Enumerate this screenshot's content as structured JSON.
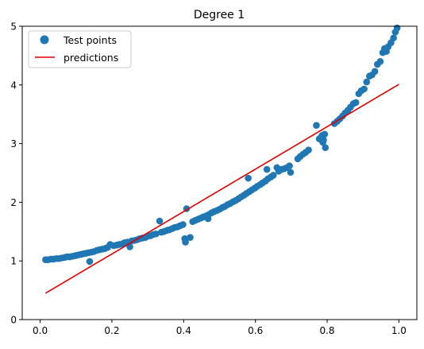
{
  "chart_data": {
    "type": "scatter",
    "title": "Degree 1",
    "xlabel": "",
    "ylabel": "",
    "xlim": [
      -0.05,
      1.05
    ],
    "ylim": [
      0,
      5
    ],
    "x_ticks": [
      0.0,
      0.2,
      0.4,
      0.6,
      0.8,
      1.0
    ],
    "x_tick_labels": [
      "0.0",
      "0.2",
      "0.4",
      "0.6",
      "0.8",
      "1.0"
    ],
    "y_ticks": [
      0,
      1,
      2,
      3,
      4,
      5
    ],
    "y_tick_labels": [
      "0",
      "1",
      "2",
      "3",
      "4",
      "5"
    ],
    "grid": false,
    "legend": {
      "placement": "top-left",
      "entries": [
        {
          "label": "Test points",
          "type": "marker",
          "color": "#1f77b4"
        },
        {
          "label": "predictions",
          "type": "line",
          "color": "#e00000"
        }
      ]
    },
    "series": [
      {
        "name": "Test points",
        "type": "scatter",
        "color": "#1f77b4",
        "points": [
          [
            0.015,
            1.02
          ],
          [
            0.022,
            1.02
          ],
          [
            0.03,
            1.03
          ],
          [
            0.037,
            1.03
          ],
          [
            0.045,
            1.04
          ],
          [
            0.052,
            1.04
          ],
          [
            0.06,
            1.05
          ],
          [
            0.068,
            1.06
          ],
          [
            0.075,
            1.07
          ],
          [
            0.083,
            1.07
          ],
          [
            0.09,
            1.08
          ],
          [
            0.098,
            1.09
          ],
          [
            0.105,
            1.1
          ],
          [
            0.113,
            1.11
          ],
          [
            0.12,
            1.12
          ],
          [
            0.128,
            1.13
          ],
          [
            0.135,
            1.14
          ],
          [
            0.138,
            0.99
          ],
          [
            0.143,
            1.15
          ],
          [
            0.15,
            1.16
          ],
          [
            0.158,
            1.18
          ],
          [
            0.165,
            1.19
          ],
          [
            0.173,
            1.2
          ],
          [
            0.18,
            1.21
          ],
          [
            0.188,
            1.23
          ],
          [
            0.195,
            1.28
          ],
          [
            0.205,
            1.26
          ],
          [
            0.213,
            1.27
          ],
          [
            0.22,
            1.28
          ],
          [
            0.228,
            1.29
          ],
          [
            0.235,
            1.31
          ],
          [
            0.243,
            1.32
          ],
          [
            0.25,
            1.24
          ],
          [
            0.255,
            1.34
          ],
          [
            0.263,
            1.35
          ],
          [
            0.27,
            1.36
          ],
          [
            0.278,
            1.38
          ],
          [
            0.285,
            1.39
          ],
          [
            0.293,
            1.4
          ],
          [
            0.3,
            1.42
          ],
          [
            0.308,
            1.43
          ],
          [
            0.315,
            1.45
          ],
          [
            0.323,
            1.46
          ],
          [
            0.333,
            1.68
          ],
          [
            0.338,
            1.49
          ],
          [
            0.345,
            1.5
          ],
          [
            0.353,
            1.52
          ],
          [
            0.36,
            1.53
          ],
          [
            0.368,
            1.55
          ],
          [
            0.375,
            1.57
          ],
          [
            0.383,
            1.58
          ],
          [
            0.39,
            1.6
          ],
          [
            0.398,
            1.62
          ],
          [
            0.403,
            1.38
          ],
          [
            0.405,
            1.32
          ],
          [
            0.408,
            1.89
          ],
          [
            0.418,
            1.4
          ],
          [
            0.425,
            1.67
          ],
          [
            0.432,
            1.69
          ],
          [
            0.44,
            1.71
          ],
          [
            0.448,
            1.73
          ],
          [
            0.455,
            1.75
          ],
          [
            0.463,
            1.77
          ],
          [
            0.468,
            1.72
          ],
          [
            0.47,
            1.79
          ],
          [
            0.478,
            1.82
          ],
          [
            0.485,
            1.84
          ],
          [
            0.493,
            1.86
          ],
          [
            0.5,
            1.88
          ],
          [
            0.508,
            1.91
          ],
          [
            0.515,
            1.93
          ],
          [
            0.523,
            1.96
          ],
          [
            0.53,
            1.98
          ],
          [
            0.538,
            2.01
          ],
          [
            0.545,
            2.03
          ],
          [
            0.553,
            2.06
          ],
          [
            0.56,
            2.09
          ],
          [
            0.568,
            2.12
          ],
          [
            0.575,
            2.15
          ],
          [
            0.58,
            2.41
          ],
          [
            0.583,
            2.18
          ],
          [
            0.59,
            2.21
          ],
          [
            0.598,
            2.24
          ],
          [
            0.605,
            2.27
          ],
          [
            0.613,
            2.3
          ],
          [
            0.62,
            2.33
          ],
          [
            0.628,
            2.36
          ],
          [
            0.632,
            2.56
          ],
          [
            0.635,
            2.4
          ],
          [
            0.643,
            2.43
          ],
          [
            0.65,
            2.46
          ],
          [
            0.66,
            2.59
          ],
          [
            0.665,
            2.53
          ],
          [
            0.673,
            2.56
          ],
          [
            0.68,
            2.57
          ],
          [
            0.688,
            2.59
          ],
          [
            0.695,
            2.62
          ],
          [
            0.698,
            2.51
          ],
          [
            0.718,
            2.74
          ],
          [
            0.725,
            2.78
          ],
          [
            0.733,
            2.82
          ],
          [
            0.74,
            2.85
          ],
          [
            0.748,
            2.89
          ],
          [
            0.77,
            3.31
          ],
          [
            0.778,
            3.08
          ],
          [
            0.783,
            3.11
          ],
          [
            0.786,
            3.14
          ],
          [
            0.788,
            3.02
          ],
          [
            0.79,
            3.06
          ],
          [
            0.793,
            3.16
          ],
          [
            0.795,
            2.93
          ],
          [
            0.82,
            3.34
          ],
          [
            0.828,
            3.38
          ],
          [
            0.835,
            3.42
          ],
          [
            0.843,
            3.47
          ],
          [
            0.85,
            3.52
          ],
          [
            0.858,
            3.57
          ],
          [
            0.865,
            3.62
          ],
          [
            0.873,
            3.68
          ],
          [
            0.88,
            3.7
          ],
          [
            0.888,
            3.85
          ],
          [
            0.895,
            3.9
          ],
          [
            0.903,
            3.93
          ],
          [
            0.91,
            4.05
          ],
          [
            0.918,
            4.15
          ],
          [
            0.925,
            4.17
          ],
          [
            0.933,
            4.23
          ],
          [
            0.94,
            4.35
          ],
          [
            0.948,
            4.4
          ],
          [
            0.955,
            4.55
          ],
          [
            0.96,
            4.62
          ],
          [
            0.965,
            4.57
          ],
          [
            0.97,
            4.65
          ],
          [
            0.978,
            4.72
          ],
          [
            0.985,
            4.8
          ],
          [
            0.99,
            4.9
          ],
          [
            0.995,
            4.97
          ]
        ]
      },
      {
        "name": "predictions",
        "type": "line",
        "color": "#e00000",
        "points": [
          [
            0.015,
            0.45
          ],
          [
            1.0,
            4.01
          ]
        ]
      }
    ]
  }
}
